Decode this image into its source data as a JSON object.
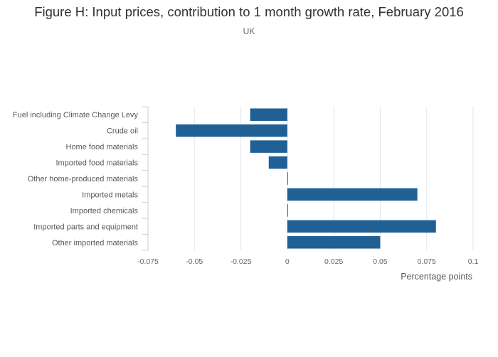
{
  "title": "Figure H: Input prices, contribution to 1 month growth rate, February 2016",
  "subtitle": "UK",
  "colors": {
    "bar": "#206095",
    "grid": "#e6e6e6",
    "axis": "#cccccc"
  },
  "chart_data": {
    "type": "bar",
    "orientation": "horizontal",
    "categories": [
      "Fuel including Climate Change Levy",
      "Crude oil",
      "Home food materials",
      "Imported food materials",
      "Other home-produced materials",
      "Imported metals",
      "Imported chemicals",
      "Imported parts and equipment",
      "Other imported materials"
    ],
    "values": [
      -0.02,
      -0.06,
      -0.02,
      -0.01,
      0,
      0.07,
      0,
      0.08,
      0.05
    ],
    "xlabel": "Percentage points",
    "ylabel": "",
    "xlim": [
      -0.075,
      0.1
    ],
    "xticks": [
      -0.075,
      -0.05,
      -0.025,
      0,
      0.025,
      0.05,
      0.075,
      0.1
    ],
    "xtick_labels": [
      "-0.075",
      "-0.05",
      "-0.025",
      "0",
      "0.025",
      "0.05",
      "0.075",
      "0.1"
    ],
    "grid": true,
    "legend": "none"
  }
}
